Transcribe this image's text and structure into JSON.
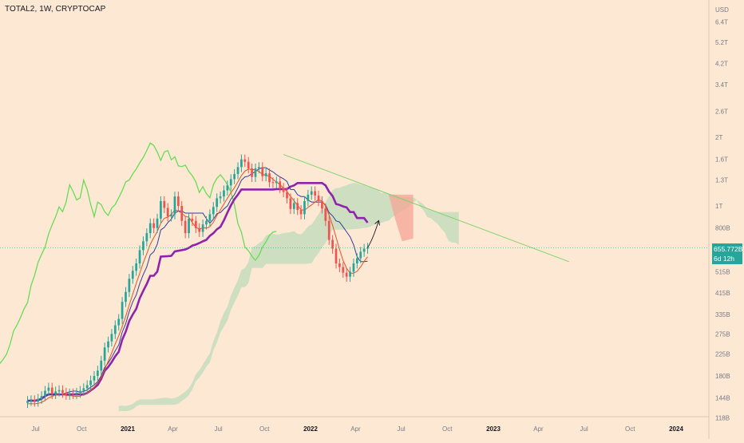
{
  "header": {
    "title": "TOTAL2, 1W, CRYPTOCAP"
  },
  "price_badge": {
    "value": "655.772B",
    "countdown": "6d 12h"
  },
  "colors": {
    "background": "#fde8d4",
    "bull": "#26a69a",
    "bear": "#ef5350",
    "lagging_span": "#66dd55",
    "kijun": "#8e24aa",
    "tenkan": "#2d3e9a",
    "ema": "#e65125",
    "cloud_bull": "#a8d5b0",
    "cloud_bear": "#f5a899",
    "trendline": "#7ed36a"
  },
  "chart_data": {
    "type": "candlestick",
    "title": "TOTAL2, 1W, CRYPTOCAP",
    "y_scale": "log",
    "y_unit": "USD",
    "y_ticks": [
      "USD",
      "6.4T",
      "5.2T",
      "4.2T",
      "3.4T",
      "2.6T",
      "2T",
      "1.6T",
      "1.3T",
      "1T",
      "800B",
      "655.772B",
      "515B",
      "415B",
      "335B",
      "275B",
      "225B",
      "180B",
      "144B",
      "118B"
    ],
    "x_ticks": [
      "Jul",
      "Oct",
      "2021",
      "Apr",
      "Jul",
      "Oct",
      "2022",
      "Apr",
      "Jul",
      "Oct",
      "2023",
      "Apr",
      "Jul",
      "Oct",
      "2024"
    ],
    "x_tick_dates": [
      "2020-07-01",
      "2020-10-01",
      "2021-01-01",
      "2021-04-01",
      "2021-07-01",
      "2021-10-01",
      "2022-01-01",
      "2022-04-01",
      "2022-07-01",
      "2022-10-01",
      "2023-01-01",
      "2023-04-01",
      "2023-07-01",
      "2023-10-01",
      "2024-01-01"
    ],
    "last_price": "655.772B",
    "candles_start": "2020-06-15",
    "candles_interval_days": 7,
    "candles_close_billions": [
      140,
      141,
      139,
      143,
      147,
      155,
      160,
      150,
      154,
      156,
      152,
      149,
      151,
      150,
      152,
      155,
      159,
      164,
      172,
      180,
      190,
      210,
      240,
      255,
      275,
      300,
      320,
      380,
      420,
      480,
      520,
      560,
      640,
      700,
      760,
      840,
      800,
      880,
      1050,
      980,
      900,
      920,
      1100,
      1000,
      860,
      760,
      880,
      860,
      800,
      770,
      830,
      860,
      920,
      990,
      1080,
      1100,
      1170,
      1230,
      1310,
      1380,
      1480,
      1600,
      1560,
      1460,
      1340,
      1460,
      1480,
      1350,
      1390,
      1270,
      1260,
      1280,
      1200,
      1150,
      1080,
      970,
      1030,
      960,
      920,
      1050,
      1120,
      1160,
      1110,
      1050,
      975,
      860,
      710,
      650,
      560,
      540,
      510,
      490,
      515,
      560,
      590,
      630,
      650,
      656
    ],
    "cloud_ahead": {
      "color": "bearish",
      "top": "1.12T",
      "bottom": "880B"
    },
    "trendline": {
      "from": "2021-11-08 at 1.68T",
      "to": "2023-06-01 at 570B"
    }
  }
}
